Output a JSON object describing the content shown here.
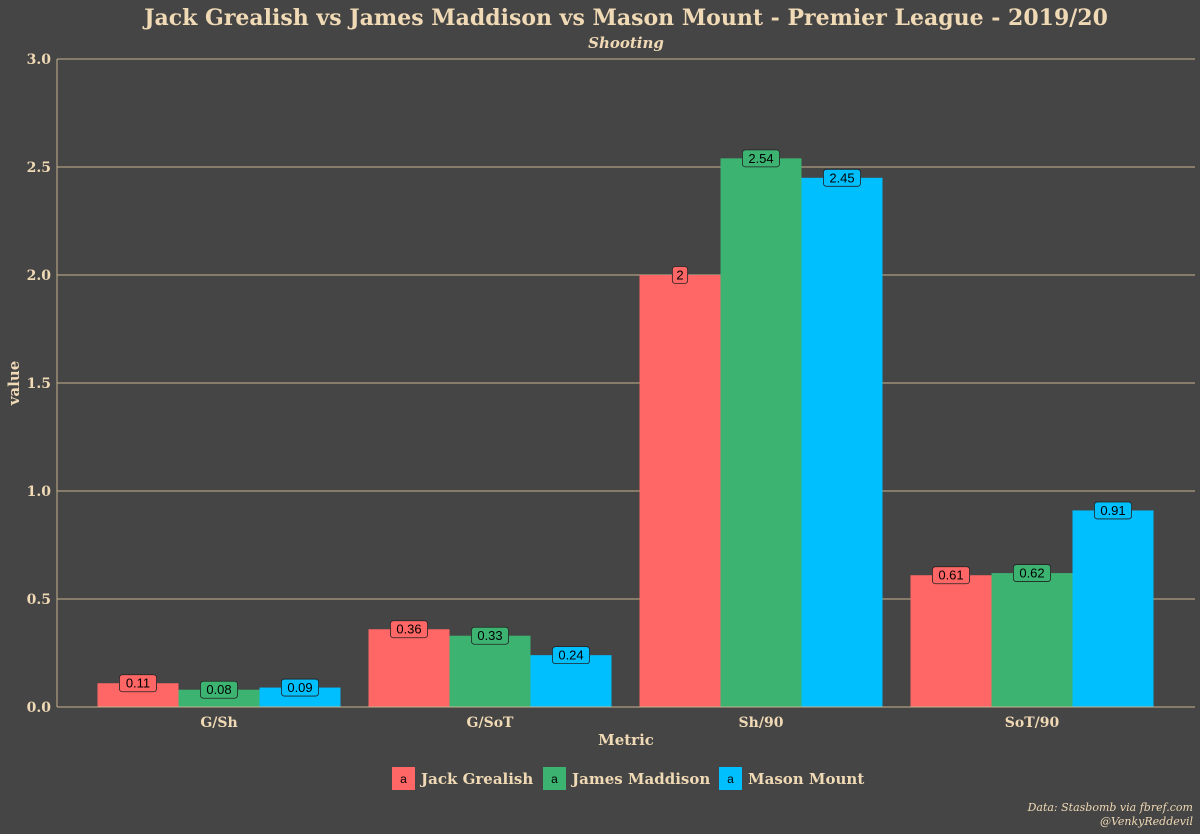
{
  "chart_data": {
    "type": "bar",
    "title": "Jack Grealish vs James Maddison vs Mason Mount - Premier League - 2019/20",
    "subtitle": "Shooting",
    "xlabel": "Metric",
    "ylabel": "value",
    "ylim": [
      0,
      3
    ],
    "yticks": [
      "0.0",
      "0.5",
      "1.0",
      "1.5",
      "2.0",
      "2.5",
      "3.0"
    ],
    "categories": [
      "G/Sh",
      "G/SoT",
      "Sh/90",
      "SoT/90"
    ],
    "series": [
      {
        "name": "Jack Grealish",
        "color": "#ff6666",
        "values": [
          0.11,
          0.36,
          2,
          0.61
        ],
        "labels": [
          "0.11",
          "0.36",
          "2",
          "0.61"
        ]
      },
      {
        "name": "James Maddison",
        "color": "#3cb371",
        "values": [
          0.08,
          0.33,
          2.54,
          0.62
        ],
        "labels": [
          "0.08",
          "0.33",
          "2.54",
          "0.62"
        ]
      },
      {
        "name": "Mason Mount",
        "color": "#00bfff",
        "values": [
          0.09,
          0.24,
          2.45,
          0.91
        ],
        "labels": [
          "0.09",
          "0.24",
          "2.45",
          "0.91"
        ]
      }
    ],
    "legend": {
      "position": "bottom",
      "glyph": "a"
    },
    "grid": true,
    "caption": [
      "Data: Stasbomb via fbref.com",
      "@VenkyReddevil"
    ]
  }
}
